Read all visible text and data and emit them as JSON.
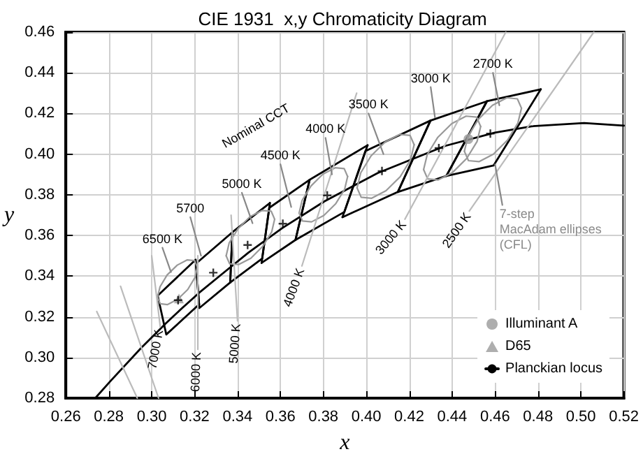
{
  "chart_data": {
    "type": "line",
    "title": "CIE 1931  x,y Chromaticity Diagram",
    "xlabel": "x",
    "ylabel": "y",
    "xlim": [
      0.26,
      0.52
    ],
    "ylim": [
      0.28,
      0.46
    ],
    "xticks": [
      {
        "value": 0.26,
        "label": "0.26"
      },
      {
        "value": 0.28,
        "label": "0.28"
      },
      {
        "value": 0.3,
        "label": "0.30"
      },
      {
        "value": 0.32,
        "label": "0.32"
      },
      {
        "value": 0.34,
        "label": "0.34"
      },
      {
        "value": 0.36,
        "label": "0.36"
      },
      {
        "value": 0.38,
        "label": "0.38"
      },
      {
        "value": 0.4,
        "label": "0.40"
      },
      {
        "value": 0.42,
        "label": "0.42"
      },
      {
        "value": 0.44,
        "label": "0.44"
      },
      {
        "value": 0.46,
        "label": "0.46"
      },
      {
        "value": 0.48,
        "label": "0.48"
      },
      {
        "value": 0.5,
        "label": "0.50"
      },
      {
        "value": 0.52,
        "label": "0.52"
      }
    ],
    "yticks": [
      {
        "value": 0.28,
        "label": "0.28"
      },
      {
        "value": 0.3,
        "label": "0.30"
      },
      {
        "value": 0.32,
        "label": "0.32"
      },
      {
        "value": 0.34,
        "label": "0.34"
      },
      {
        "value": 0.36,
        "label": "0.36"
      },
      {
        "value": 0.38,
        "label": "0.38"
      },
      {
        "value": 0.4,
        "label": "0.40"
      },
      {
        "value": 0.42,
        "label": "0.42"
      },
      {
        "value": 0.44,
        "label": "0.44"
      },
      {
        "value": 0.46,
        "label": "0.46"
      }
    ],
    "grid": true,
    "legend": "bottom right",
    "marker": "none",
    "series": [
      {
        "type": "scatter",
        "marker": "circle",
        "name": "Illuminant A",
        "color": "#9a9a9a",
        "x": [
          0.4476
        ],
        "values": [
          0.4074
        ]
      },
      {
        "type": "scatter",
        "marker": "triangle",
        "name": "D65",
        "color": "#9a9a9a",
        "x": [
          0.3127
        ],
        "values": [
          0.329
        ]
      },
      {
        "name": "Planckian locus",
        "color": "#000000",
        "x": [
          0.2737,
          0.2807,
          0.2952,
          0.3064,
          0.3135,
          0.3221,
          0.3325,
          0.3451,
          0.3608,
          0.3805,
          0.4053,
          0.4369,
          0.4599,
          0.477,
          0.5015,
          0.52
        ],
        "values": [
          0.28,
          0.2883,
          0.3048,
          0.3166,
          0.3236,
          0.3318,
          0.3408,
          0.3516,
          0.3636,
          0.3768,
          0.3907,
          0.4041,
          0.4106,
          0.4137,
          0.4153,
          0.414
        ]
      },
      {
        "color": "#000000",
        "x": [
          0.4373,
          0.4562,
          0.4813
        ],
        "values": [
          0.3893,
          0.426,
          0.4319
        ]
      },
      {
        "color": "#000000",
        "x": [
          0.4373,
          0.4593,
          0.4813
        ],
        "values": [
          0.3893,
          0.3944,
          0.4319
        ]
      },
      {
        "color": "#000000",
        "x": [
          0.4147,
          0.4299,
          0.4562
        ],
        "values": [
          0.3814,
          0.4165,
          0.426
        ]
      },
      {
        "color": "#000000",
        "x": [
          0.4147,
          0.4373,
          0.4562
        ],
        "values": [
          0.3814,
          0.3893,
          0.426
        ]
      },
      {
        "color": "#000000",
        "x": [
          0.3889,
          0.3996,
          0.4299
        ],
        "values": [
          0.369,
          0.4015,
          0.4165
        ]
      },
      {
        "color": "#000000",
        "x": [
          0.3889,
          0.4147,
          0.4299
        ],
        "values": [
          0.369,
          0.3814,
          0.4165
        ]
      },
      {
        "color": "#000000",
        "x": [
          0.367,
          0.3736,
          0.4006
        ],
        "values": [
          0.3578,
          0.3874,
          0.4044
        ]
      },
      {
        "color": "#000000",
        "x": [
          0.367,
          0.3898,
          0.4006
        ],
        "values": [
          0.3578,
          0.3716,
          0.4044
        ]
      },
      {
        "color": "#000000",
        "x": [
          0.3512,
          0.3548,
          0.3736
        ],
        "values": [
          0.3465,
          0.3736,
          0.3874
        ]
      },
      {
        "color": "#000000",
        "x": [
          0.3512,
          0.367,
          0.3736
        ],
        "values": [
          0.3465,
          0.3578,
          0.3874
        ]
      },
      {
        "color": "#000000",
        "x": [
          0.3366,
          0.3376,
          0.3551
        ],
        "values": [
          0.3369,
          0.3616,
          0.376
        ]
      },
      {
        "color": "#000000",
        "x": [
          0.3366,
          0.3515,
          0.3551
        ],
        "values": [
          0.3369,
          0.3487,
          0.376
        ]
      },
      {
        "color": "#000000",
        "x": [
          0.3207,
          0.3376
        ],
        "values": [
          0.3462,
          0.3616
        ]
      },
      {
        "color": "#000000",
        "x": [
          0.3207,
          0.3222,
          0.3366,
          0.3376
        ],
        "values": [
          0.3462,
          0.3243,
          0.3369,
          0.3616
        ]
      },
      {
        "color": "#000000",
        "x": [
          0.3028,
          0.3205,
          0.3221
        ],
        "values": [
          0.3304,
          0.3481,
          0.3261
        ]
      },
      {
        "color": "#000000",
        "x": [
          0.3028,
          0.3068,
          0.3221
        ],
        "values": [
          0.3304,
          0.3113,
          0.3261
        ]
      },
      {
        "color": "#999999",
        "x": [
          0.3027,
          0.3039,
          0.3072,
          0.3119,
          0.3166,
          0.32,
          0.3213
        ],
        "values": [
          0.3296,
          0.3348,
          0.3406,
          0.3454,
          0.348,
          0.3476,
          0.3444
        ]
      },
      {
        "color": "#999999",
        "x": [
          0.3027,
          0.304,
          0.3074,
          0.3121,
          0.3168,
          0.3201,
          0.3213
        ],
        "values": [
          0.3296,
          0.3264,
          0.326,
          0.3286,
          0.3334,
          0.3392,
          0.3444
        ]
      },
      {
        "color": "#999999",
        "x": [
          0.3347,
          0.3361,
          0.3402,
          0.3458,
          0.3515,
          0.3557,
          0.3573
        ],
        "values": [
          0.35,
          0.3563,
          0.3633,
          0.3692,
          0.3723,
          0.3719,
          0.368
        ]
      },
      {
        "color": "#999999",
        "x": [
          0.3347,
          0.3363,
          0.3405,
          0.3462,
          0.3518,
          0.3559,
          0.3573
        ],
        "values": [
          0.35,
          0.3461,
          0.3457,
          0.3488,
          0.3547,
          0.3617,
          0.368
        ]
      },
      {
        "color": "#999999",
        "x": [
          0.3687,
          0.3701,
          0.3742,
          0.3798,
          0.3855,
          0.3897,
          0.3913
        ],
        "values": [
          0.371,
          0.3773,
          0.3843,
          0.3902,
          0.3933,
          0.3929,
          0.389
        ]
      },
      {
        "color": "#999999",
        "x": [
          0.3687,
          0.3703,
          0.3745,
          0.3802,
          0.3858,
          0.3899,
          0.3913
        ],
        "values": [
          0.371,
          0.3671,
          0.3667,
          0.3698,
          0.3757,
          0.3827,
          0.389
        ]
      },
      {
        "color": "#999999",
        "x": [
          0.3957,
          0.3974,
          0.4022,
          0.4088,
          0.4155,
          0.4204,
          0.4223
        ],
        "values": [
          0.3834,
          0.3908,
          0.3991,
          0.406,
          0.4097,
          0.4092,
          0.4046
        ]
      },
      {
        "color": "#999999",
        "x": [
          0.3957,
          0.3976,
          0.4025,
          0.4092,
          0.4158,
          0.4206,
          0.4223
        ],
        "values": [
          0.3834,
          0.3788,
          0.3783,
          0.382,
          0.3889,
          0.3972,
          0.4046
        ]
      },
      {
        "color": "#999999",
        "x": [
          0.4267,
          0.4284,
          0.4332,
          0.4398,
          0.4465,
          0.4514,
          0.4533
        ],
        "values": [
          0.3924,
          0.3998,
          0.4081,
          0.415,
          0.4187,
          0.4182,
          0.4136
        ]
      },
      {
        "color": "#999999",
        "x": [
          0.4267,
          0.4286,
          0.4335,
          0.4402,
          0.4468,
          0.4516,
          0.4533
        ],
        "values": [
          0.3924,
          0.3878,
          0.3873,
          0.391,
          0.3979,
          0.4062,
          0.4136
        ]
      },
      {
        "color": "#999999",
        "x": [
          0.4457,
          0.4474,
          0.4522,
          0.4588,
          0.4655,
          0.4704,
          0.4723
        ],
        "values": [
          0.4014,
          0.4088,
          0.4171,
          0.424,
          0.4277,
          0.4272,
          0.4226
        ]
      },
      {
        "color": "#999999",
        "x": [
          0.4457,
          0.4476,
          0.4525,
          0.4592,
          0.4658,
          0.4706,
          0.4723
        ],
        "values": [
          0.4014,
          0.3968,
          0.3963,
          0.4,
          0.4069,
          0.4152,
          0.4226
        ]
      },
      {
        "color": "#bbbbbb",
        "x": [
          0.2744,
          0.2933
        ],
        "values": [
          0.3226,
          0.28
        ]
      },
      {
        "color": "#bbbbbb",
        "x": [
          0.2855,
          0.3032
        ],
        "values": [
          0.335,
          0.28
        ]
      },
      {
        "color": "#bbbbbb",
        "x": [
          0.3,
          0.304
        ],
        "values": [
          0.35,
          0.315
        ]
      },
      {
        "color": "#bbbbbb",
        "x": [
          0.3215,
          0.3215
        ],
        "values": [
          0.35,
          0.304
        ]
      },
      {
        "color": "#bbbbbb",
        "x": [
          0.337,
          0.34
        ],
        "values": [
          0.37,
          0.318
        ]
      },
      {
        "color": "#bbbbbb",
        "x": [
          0.37,
          0.3955
        ],
        "values": [
          0.345,
          0.43
        ]
      },
      {
        "color": "#bbbbbb",
        "x": [
          0.418,
          0.465
        ],
        "values": [
          0.368,
          0.46
        ]
      },
      {
        "color": "#bbbbbb",
        "x": [
          0.448,
          0.506
        ],
        "values": [
          0.372,
          0.46
        ]
      },
      {
        "color": "#888888",
        "x": [
          0.305,
          0.309
        ],
        "values": [
          0.354,
          0.342
        ]
      },
      {
        "color": "#888888",
        "x": [
          0.318,
          0.323
        ],
        "values": [
          0.369,
          0.35
        ]
      },
      {
        "color": "#888888",
        "x": [
          0.342,
          0.347
        ],
        "values": [
          0.381,
          0.366
        ]
      },
      {
        "color": "#888888",
        "x": [
          0.36,
          0.365
        ],
        "values": [
          0.395,
          0.374
        ]
      },
      {
        "color": "#888888",
        "x": [
          0.381,
          0.384
        ],
        "values": [
          0.408,
          0.39
        ]
      },
      {
        "color": "#888888",
        "x": [
          0.401,
          0.408
        ],
        "values": [
          0.42,
          0.4
        ]
      },
      {
        "color": "#888888",
        "x": [
          0.43,
          0.432
        ],
        "values": [
          0.433,
          0.418
        ]
      },
      {
        "color": "#888888",
        "x": [
          0.459,
          0.462
        ],
        "values": [
          0.44,
          0.424
        ]
      },
      {
        "color": "#888888",
        "x": [
          0.46,
          0.4634
        ],
        "values": [
          0.395,
          0.375
        ]
      },
      {
        "type": "scatter",
        "marker": "cross",
        "color": "#000000",
        "x": [
          0.4578,
          0.4338,
          0.4073,
          0.3818,
          0.3611,
          0.3447,
          0.3287,
          0.3123
        ],
        "values": [
          0.4101,
          0.403,
          0.3917,
          0.3797,
          0.3658,
          0.3553,
          0.3417,
          0.3282
        ]
      }
    ],
    "annotations": [
      "Nominal CCT",
      {
        "text": "6500 K",
        "x": 0.305,
        "y": 0.354
      },
      {
        "text": "5700",
        "x": 0.318,
        "y": 0.369
      },
      {
        "text": "5000 K",
        "x": 0.342,
        "y": 0.381
      },
      {
        "text": "4500 K",
        "x": 0.36,
        "y": 0.395
      },
      {
        "text": "4000 K",
        "x": 0.381,
        "y": 0.408
      },
      {
        "text": "3500 K",
        "x": 0.401,
        "y": 0.42
      },
      {
        "text": "3000 K",
        "x": 0.43,
        "y": 0.433
      },
      {
        "text": "2700 K",
        "x": 0.459,
        "y": 0.44
      },
      {
        "text": "7000 K",
        "x": 0.304,
        "y": 0.315
      },
      {
        "text": "6000 K",
        "x": 0.3215,
        "y": 0.304
      },
      {
        "text": "5000 K",
        "x": 0.34,
        "y": 0.318
      },
      {
        "text": "4000 K",
        "x": 0.37,
        "y": 0.345
      },
      {
        "text": "3000 K",
        "x": 0.418,
        "y": 0.368
      },
      {
        "text": "2500 K",
        "x": 0.448,
        "y": 0.372
      },
      {
        "text": "7-step\nMacAdam ellipses\n(CFL)",
        "x": 0.4634,
        "y": 0.375
      }
    ]
  }
}
